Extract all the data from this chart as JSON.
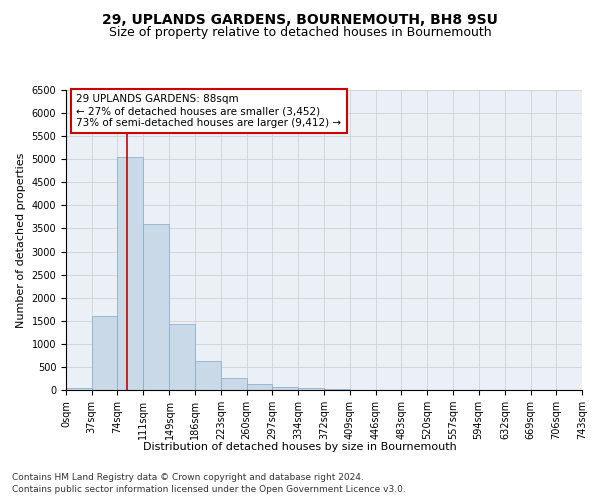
{
  "title": "29, UPLANDS GARDENS, BOURNEMOUTH, BH8 9SU",
  "subtitle": "Size of property relative to detached houses in Bournemouth",
  "xlabel": "Distribution of detached houses by size in Bournemouth",
  "ylabel": "Number of detached properties",
  "footnote1": "Contains HM Land Registry data © Crown copyright and database right 2024.",
  "footnote2": "Contains public sector information licensed under the Open Government Licence v3.0.",
  "annotation_line1": "29 UPLANDS GARDENS: 88sqm",
  "annotation_line2": "← 27% of detached houses are smaller (3,452)",
  "annotation_line3": "73% of semi-detached houses are larger (9,412) →",
  "bar_color": "#c9d9e8",
  "bar_edge_color": "#7fa8c9",
  "red_line_x": 88,
  "categories": [
    "0sqm",
    "37sqm",
    "74sqm",
    "111sqm",
    "149sqm",
    "186sqm",
    "223sqm",
    "260sqm",
    "297sqm",
    "334sqm",
    "372sqm",
    "409sqm",
    "446sqm",
    "483sqm",
    "520sqm",
    "557sqm",
    "594sqm",
    "632sqm",
    "669sqm",
    "706sqm",
    "743sqm"
  ],
  "bin_edges": [
    0,
    37,
    74,
    111,
    149,
    186,
    223,
    260,
    297,
    334,
    372,
    409,
    446,
    483,
    520,
    557,
    594,
    632,
    669,
    706,
    743
  ],
  "bar_heights": [
    50,
    1600,
    5050,
    3600,
    1430,
    630,
    270,
    120,
    70,
    40,
    15,
    8,
    3,
    2,
    1,
    0,
    0,
    0,
    0,
    0
  ],
  "ylim": [
    0,
    6500
  ],
  "yticks": [
    0,
    500,
    1000,
    1500,
    2000,
    2500,
    3000,
    3500,
    4000,
    4500,
    5000,
    5500,
    6000,
    6500
  ],
  "background_color": "#ffffff",
  "grid_color": "#cccccc",
  "annotation_box_color": "#ffffff",
  "annotation_box_edge": "#cc0000",
  "red_line_color": "#cc0000",
  "title_fontsize": 10,
  "subtitle_fontsize": 9,
  "axis_label_fontsize": 8,
  "tick_fontsize": 7,
  "annotation_fontsize": 7.5,
  "footnote_fontsize": 6.5
}
